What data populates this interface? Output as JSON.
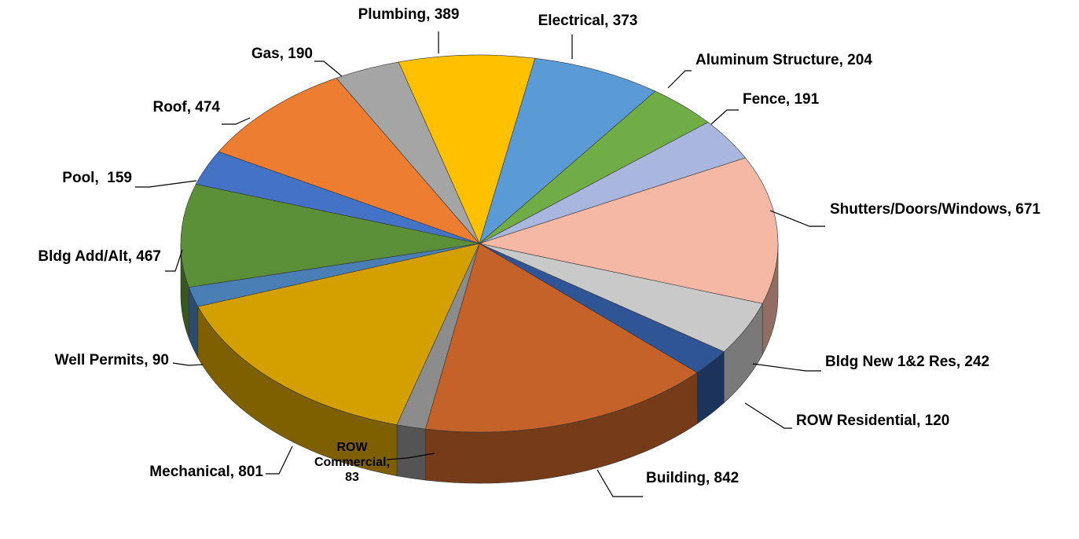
{
  "chart_data": {
    "type": "pie3d",
    "value_labels": [
      "Plumbing, 389",
      "Electrical, 373",
      "Aluminum Structure, 204",
      "Fence, 191",
      "Shutters/Doors/Windows, 671",
      "Bldg New 1&2 Res, 242",
      "ROW Residential, 120",
      "Building, 842",
      "ROW Commercial, 83",
      "Mechanical, 801",
      "Well Permits, 90",
      "Bldg Add/Alt, 467",
      "Pool,  159",
      "Roof, 474",
      "Gas, 190"
    ],
    "values": [
      389,
      373,
      204,
      191,
      671,
      242,
      120,
      842,
      83,
      801,
      90,
      467,
      159,
      474,
      190
    ],
    "colors": [
      "#ffc000",
      "#5b9bd5",
      "#70ad47",
      "#a9b6de",
      "#f4b8a4",
      "#c9c9c9",
      "#2f5597",
      "#c5622a",
      "#8c8c8c",
      "#d4a000",
      "#4a7fb5",
      "#5b8f38",
      "#4472c4",
      "#ed7d31",
      "#a5a5a5"
    ]
  }
}
